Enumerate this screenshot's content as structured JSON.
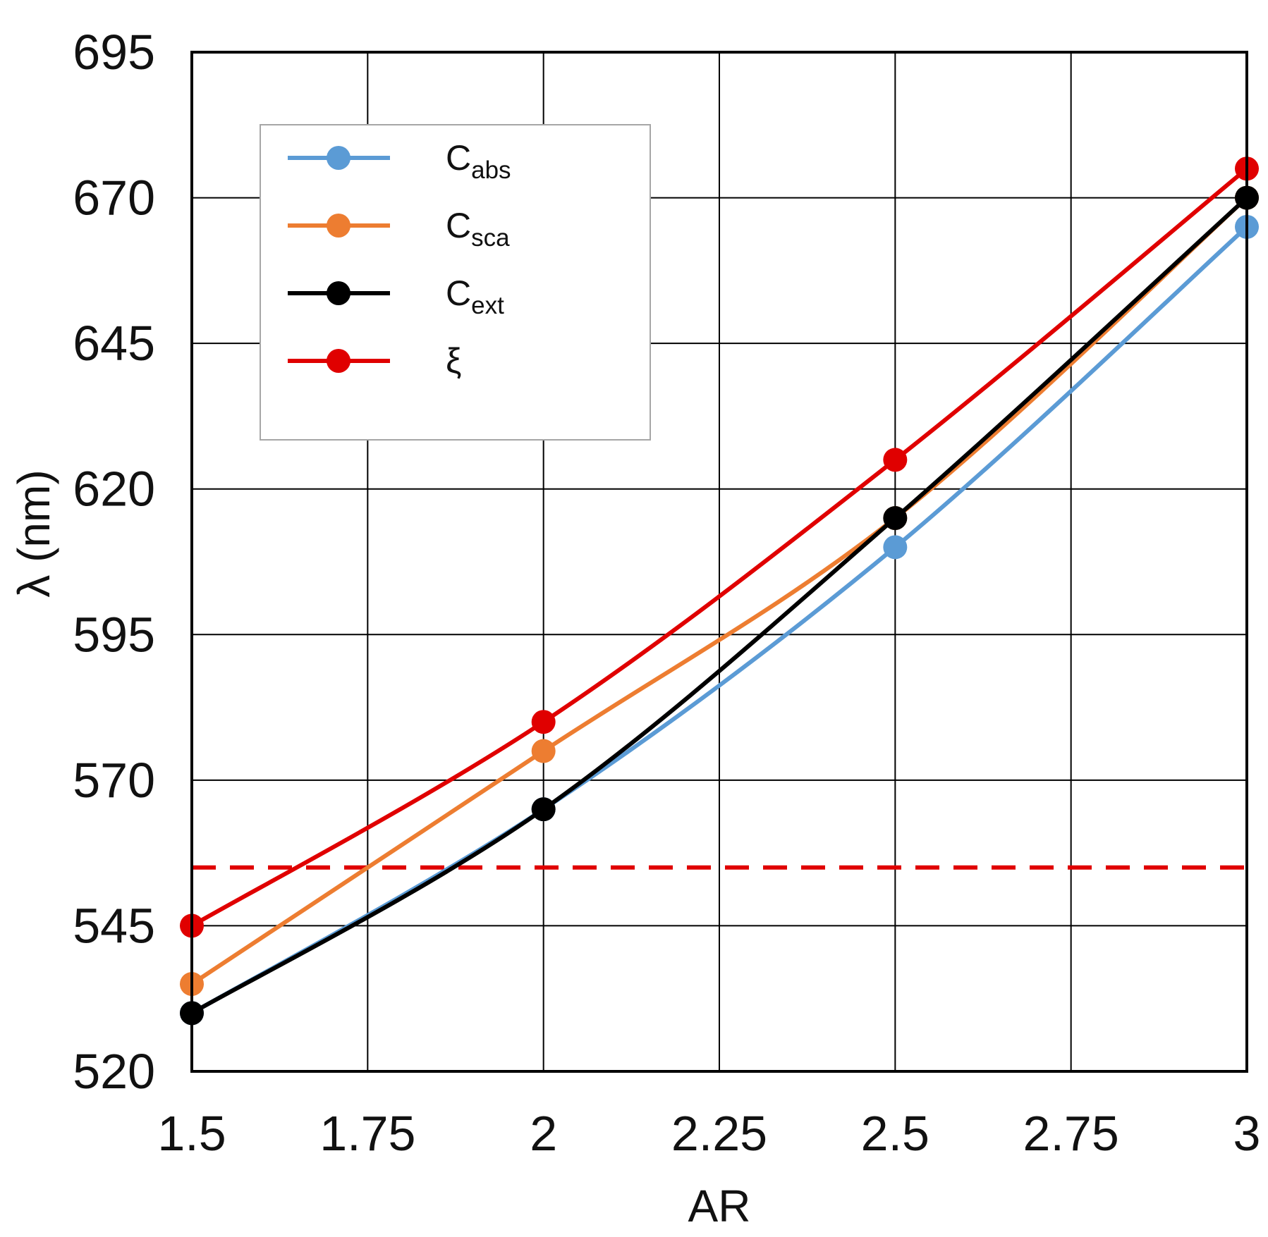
{
  "chart_data": {
    "type": "line",
    "xlabel": "AR",
    "ylabel": "λ (nm)",
    "x": [
      1.5,
      2,
      2.5,
      3
    ],
    "xlim": [
      1.5,
      3
    ],
    "ylim": [
      520,
      695
    ],
    "x_ticks": [
      "1.5",
      "1.75",
      "2",
      "2.25",
      "2.5",
      "2.75",
      "3"
    ],
    "y_ticks": [
      "520",
      "545",
      "570",
      "595",
      "620",
      "645",
      "670",
      "695"
    ],
    "grid": true,
    "legend_position": "top-left",
    "series": [
      {
        "name": "C",
        "subscript": "abs",
        "color": "#5b9bd5",
        "values": [
          530,
          565,
          610,
          665
        ]
      },
      {
        "name": "C",
        "subscript": "sca",
        "color": "#ed7d31",
        "values": [
          535,
          575,
          615,
          670
        ]
      },
      {
        "name": "C",
        "subscript": "ext",
        "color": "#000000",
        "values": [
          530,
          565,
          615,
          670
        ]
      },
      {
        "name": "ξ",
        "subscript": "",
        "color": "#e00000",
        "values": [
          545,
          580,
          625,
          675
        ]
      }
    ],
    "reference_line": {
      "y": 555,
      "color": "#e00000",
      "style": "dashed"
    }
  }
}
